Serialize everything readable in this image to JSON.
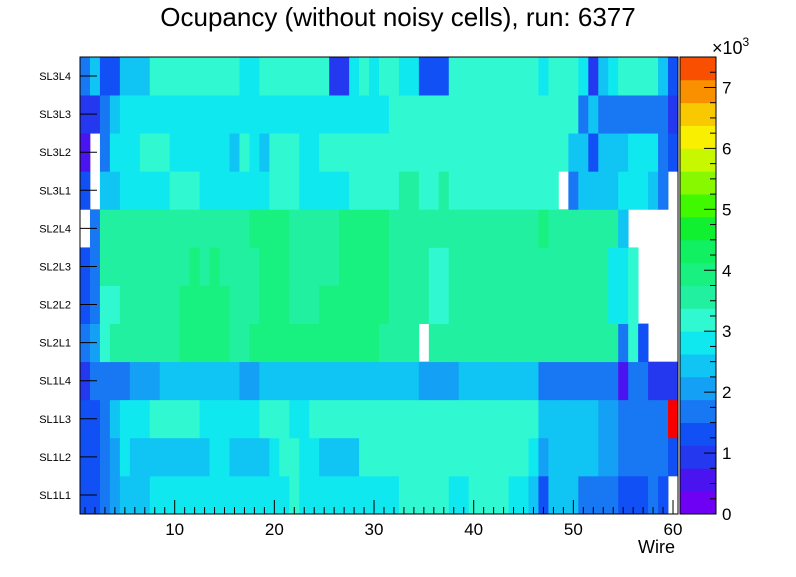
{
  "chart_data": {
    "type": "heatmap",
    "title": "Ocupancy (without noisy cells), run: 6377",
    "xlabel": "Wire",
    "ylabel": "",
    "x_range": [
      0.5,
      60.5
    ],
    "x_ticks": [
      10,
      20,
      30,
      40,
      50,
      60
    ],
    "rows": [
      "SL1L1",
      "SL1L2",
      "SL1L3",
      "SL1L4",
      "SL2L1",
      "SL2L2",
      "SL2L3",
      "SL2L4",
      "SL3L1",
      "SL3L2",
      "SL3L3",
      "SL3L4"
    ],
    "z_range": [
      0,
      7.5
    ],
    "z_multiplier_label": "×10",
    "z_multiplier_exponent": "3",
    "z_ticks": [
      0,
      1,
      2,
      3,
      4,
      5,
      6,
      7
    ],
    "grid": false,
    "values_unit_note": "values in units of 10^3 counts; null = empty bin",
    "values": [
      [
        1.3,
        1.4,
        1.8,
        2.0,
        2.6,
        2.6,
        2.6,
        2.8,
        2.8,
        2.8,
        2.8,
        2.8,
        2.8,
        2.8,
        2.8,
        2.8,
        2.8,
        2.8,
        2.8,
        2.8,
        2.9,
        3.3,
        2.8,
        2.8,
        2.8,
        2.8,
        2.8,
        2.8,
        2.8,
        2.8,
        2.8,
        2.8,
        3.3,
        3.3,
        3.3,
        3.3,
        3.3,
        2.8,
        2.8,
        3.3,
        3.3,
        3.3,
        3.3,
        2.8,
        2.8,
        2.5,
        1.4,
        2.6,
        2.6,
        2.6,
        1.8,
        1.8,
        1.8,
        1.8,
        1.3,
        1.3,
        1.3,
        1.5,
        1.3,
        null
      ],
      [
        1.3,
        1.3,
        1.8,
        2.0,
        2.8,
        2.6,
        2.6,
        2.6,
        2.6,
        2.6,
        2.6,
        2.6,
        2.6,
        2.8,
        2.8,
        2.6,
        2.6,
        2.6,
        2.6,
        2.8,
        3.3,
        3.3,
        2.8,
        2.8,
        2.6,
        2.6,
        2.6,
        2.6,
        3.1,
        3.1,
        3.1,
        3.1,
        3.1,
        3.1,
        3.1,
        3.1,
        3.1,
        3.1,
        3.1,
        3.1,
        3.1,
        3.1,
        3.1,
        3.1,
        3.1,
        2.9,
        2.1,
        2.6,
        2.6,
        2.6,
        2.6,
        2.6,
        2.0,
        2.0,
        1.5,
        1.5,
        1.5,
        1.5,
        1.5,
        1.3
      ],
      [
        1.3,
        1.3,
        1.8,
        2.5,
        2.8,
        2.8,
        2.8,
        3.0,
        3.0,
        3.0,
        3.0,
        3.0,
        2.8,
        2.8,
        2.8,
        2.8,
        2.8,
        2.8,
        3.0,
        3.0,
        3.0,
        2.8,
        2.8,
        3.0,
        3.0,
        3.0,
        3.0,
        3.0,
        3.3,
        3.3,
        3.3,
        3.3,
        3.3,
        3.3,
        3.3,
        3.3,
        3.3,
        3.3,
        3.3,
        3.3,
        3.3,
        3.3,
        3.3,
        3.3,
        3.0,
        3.0,
        2.4,
        2.4,
        2.4,
        2.4,
        2.4,
        2.4,
        2.0,
        2.0,
        1.8,
        1.8,
        1.8,
        1.5,
        1.5,
        7.6
      ],
      [
        1.0,
        1.5,
        1.5,
        1.8,
        1.8,
        2.1,
        2.1,
        2.1,
        2.3,
        2.3,
        2.3,
        2.3,
        2.3,
        2.3,
        2.3,
        2.3,
        2.1,
        2.1,
        2.3,
        2.3,
        2.3,
        2.3,
        2.3,
        2.3,
        2.3,
        2.3,
        2.3,
        2.3,
        2.3,
        2.3,
        2.3,
        2.3,
        2.3,
        2.3,
        2.1,
        2.1,
        2.1,
        2.1,
        2.3,
        2.3,
        2.3,
        2.3,
        2.3,
        2.3,
        2.3,
        2.3,
        1.8,
        1.8,
        1.5,
        1.5,
        1.5,
        1.5,
        1.5,
        1.8,
        0.5,
        1.8,
        1.8,
        1.0,
        1.0,
        1.0
      ],
      [
        1.8,
        2.0,
        3.0,
        3.4,
        3.4,
        3.4,
        3.4,
        3.4,
        3.4,
        3.4,
        3.8,
        3.8,
        3.8,
        3.8,
        3.8,
        3.4,
        3.4,
        3.8,
        3.8,
        3.8,
        3.8,
        3.8,
        3.8,
        3.8,
        3.8,
        3.8,
        3.8,
        3.8,
        3.8,
        3.8,
        3.6,
        3.4,
        3.4,
        3.4,
        null,
        3.4,
        3.4,
        3.4,
        3.4,
        3.4,
        3.4,
        3.4,
        3.4,
        3.4,
        3.4,
        3.4,
        3.4,
        3.4,
        3.4,
        3.4,
        3.4,
        3.4,
        3.4,
        3.4,
        1.8,
        3.0,
        1.2,
        null,
        null,
        null
      ],
      [
        1.2,
        1.8,
        3.0,
        3.0,
        3.4,
        3.4,
        3.4,
        3.4,
        3.4,
        3.4,
        3.8,
        3.8,
        3.8,
        3.8,
        3.8,
        3.4,
        3.4,
        3.4,
        3.8,
        3.8,
        3.8,
        3.4,
        3.4,
        3.4,
        3.8,
        3.8,
        3.8,
        3.8,
        3.8,
        3.8,
        3.8,
        3.4,
        3.4,
        3.4,
        3.4,
        3.0,
        3.0,
        3.4,
        3.4,
        3.4,
        3.4,
        3.4,
        3.4,
        3.4,
        3.4,
        3.4,
        3.4,
        3.4,
        3.4,
        3.4,
        3.4,
        3.4,
        3.4,
        2.8,
        2.8,
        3.0,
        null,
        null,
        null,
        null
      ],
      [
        1.2,
        1.8,
        3.4,
        3.4,
        3.4,
        3.4,
        3.4,
        3.4,
        3.4,
        3.4,
        3.4,
        3.8,
        3.4,
        3.8,
        3.4,
        3.4,
        3.4,
        3.4,
        3.8,
        3.8,
        3.8,
        3.4,
        3.4,
        3.4,
        3.4,
        3.4,
        3.8,
        3.8,
        3.8,
        3.8,
        3.8,
        3.4,
        3.4,
        3.4,
        3.4,
        3.0,
        3.0,
        3.4,
        3.4,
        3.4,
        3.4,
        3.4,
        3.4,
        3.4,
        3.4,
        3.4,
        3.4,
        3.4,
        3.4,
        3.4,
        3.4,
        3.4,
        3.4,
        2.8,
        2.8,
        3.0,
        null,
        null,
        null,
        null
      ],
      [
        null,
        1.8,
        3.4,
        3.4,
        3.4,
        3.4,
        3.4,
        3.4,
        3.4,
        3.4,
        3.4,
        3.4,
        3.4,
        3.4,
        3.4,
        3.4,
        3.4,
        3.8,
        3.8,
        3.8,
        3.8,
        3.4,
        3.4,
        3.4,
        3.4,
        3.4,
        3.8,
        3.8,
        3.8,
        3.8,
        3.8,
        3.4,
        3.4,
        3.4,
        3.4,
        3.4,
        3.4,
        3.4,
        3.4,
        3.4,
        3.4,
        3.4,
        3.4,
        3.4,
        3.4,
        3.4,
        3.8,
        3.4,
        3.4,
        3.4,
        3.4,
        3.4,
        3.4,
        3.4,
        2.5,
        null,
        null,
        null,
        null,
        null
      ],
      [
        1.2,
        null,
        2.6,
        2.6,
        2.8,
        2.8,
        2.8,
        2.8,
        2.8,
        3.0,
        3.0,
        3.0,
        2.8,
        2.8,
        2.8,
        2.8,
        2.8,
        2.8,
        2.8,
        3.0,
        3.0,
        3.0,
        2.8,
        2.8,
        2.8,
        2.8,
        2.8,
        3.0,
        3.0,
        3.0,
        3.0,
        3.0,
        3.5,
        3.5,
        3.0,
        3.0,
        3.5,
        3.0,
        3.0,
        3.0,
        3.0,
        3.0,
        3.0,
        3.0,
        3.0,
        3.0,
        3.0,
        3.0,
        null,
        1.5,
        2.6,
        2.6,
        2.6,
        2.6,
        2.9,
        2.9,
        2.9,
        2.6,
        1.5,
        null
      ],
      [
        0.6,
        null,
        1.8,
        2.8,
        2.8,
        2.8,
        3.0,
        3.0,
        3.0,
        2.8,
        2.8,
        2.8,
        2.8,
        2.8,
        2.8,
        2.6,
        3.0,
        2.8,
        2.6,
        3.0,
        3.0,
        3.0,
        2.8,
        2.8,
        3.0,
        3.0,
        3.0,
        3.0,
        3.0,
        3.0,
        3.0,
        3.0,
        3.0,
        3.0,
        3.0,
        3.0,
        3.0,
        3.0,
        3.0,
        3.0,
        3.0,
        3.0,
        3.0,
        3.0,
        3.0,
        3.0,
        3.0,
        3.0,
        3.0,
        2.5,
        2.5,
        1.2,
        2.6,
        2.6,
        2.6,
        2.9,
        2.9,
        2.9,
        1.5,
        1.2
      ],
      [
        1.0,
        1.0,
        1.5,
        2.5,
        2.8,
        2.8,
        2.8,
        2.8,
        2.8,
        2.8,
        2.8,
        2.8,
        2.8,
        2.8,
        2.8,
        2.8,
        2.8,
        2.8,
        2.8,
        2.8,
        2.8,
        2.8,
        2.8,
        2.8,
        2.8,
        2.8,
        2.8,
        2.8,
        2.8,
        2.8,
        2.8,
        3.0,
        3.0,
        3.0,
        3.0,
        3.0,
        3.0,
        3.0,
        3.0,
        3.0,
        3.0,
        3.0,
        3.0,
        3.0,
        3.0,
        3.0,
        3.0,
        3.0,
        3.0,
        3.0,
        1.5,
        2.6,
        1.5,
        1.5,
        1.8,
        1.8,
        1.8,
        1.8,
        1.5,
        1.0
      ],
      [
        1.8,
        2.5,
        1.2,
        1.2,
        2.6,
        2.6,
        2.6,
        3.0,
        3.0,
        3.0,
        3.0,
        3.0,
        3.0,
        3.0,
        3.0,
        3.0,
        2.8,
        2.8,
        3.0,
        3.0,
        3.0,
        3.0,
        3.0,
        3.0,
        3.0,
        0.8,
        0.8,
        2.8,
        3.0,
        2.8,
        3.0,
        3.0,
        2.8,
        2.8,
        1.2,
        1.2,
        1.2,
        3.0,
        3.0,
        3.0,
        3.0,
        3.0,
        3.0,
        3.0,
        3.0,
        3.0,
        2.8,
        3.0,
        3.0,
        3.0,
        2.8,
        1.0,
        2.6,
        2.8,
        3.0,
        3.0,
        3.0,
        3.0,
        2.4,
        1.2
      ]
    ]
  }
}
